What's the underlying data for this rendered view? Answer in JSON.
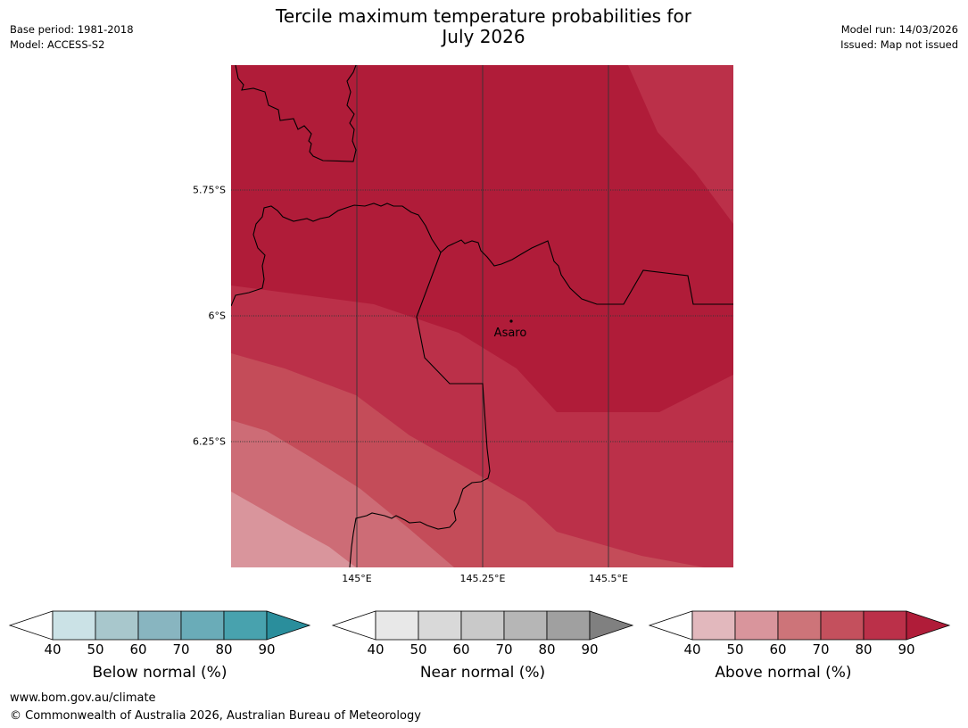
{
  "header": {
    "title_line1": "Tercile maximum temperature probabilities for",
    "title_line2": "July 2026",
    "base_period": "Base period: 1981-2018",
    "model": "Model: ACCESS-S2",
    "model_run": "Model run: 14/03/2026",
    "issued": "Issued: Map not issued"
  },
  "map": {
    "lat_labels": [
      "5.75°S",
      "6°S",
      "6.25°S"
    ],
    "lon_labels": [
      "145°E",
      "145.25°E",
      "145.5°E"
    ],
    "place": "Asaro",
    "colors": {
      "above_90": "#b01c39",
      "above_80": "#bb3049",
      "above_70": "#c44c59",
      "above_60": "#cd6c76",
      "above_50": "#d9959c"
    }
  },
  "legends": [
    {
      "caption": "Below normal (%)",
      "ticks": [
        "40",
        "50",
        "60",
        "70",
        "80",
        "90"
      ],
      "colors": [
        "#cbe2e6",
        "#a8c7cc",
        "#88b5c0",
        "#6aacb8",
        "#48a2ae",
        "#2a8e9c"
      ]
    },
    {
      "caption": "Near normal (%)",
      "ticks": [
        "40",
        "50",
        "60",
        "70",
        "80",
        "90"
      ],
      "colors": [
        "#e8e8e8",
        "#d9d9d9",
        "#c9c9c9",
        "#b6b6b6",
        "#a0a0a0",
        "#808080"
      ]
    },
    {
      "caption": "Above normal (%)",
      "ticks": [
        "40",
        "50",
        "60",
        "70",
        "80",
        "90"
      ],
      "colors": [
        "#e2b8bd",
        "#d9959c",
        "#cd7479",
        "#c4505d",
        "#bb3049",
        "#b01c39"
      ]
    }
  ],
  "footer": {
    "url": "www.bom.gov.au/climate",
    "copyright": "© Commonwealth of Australia 2026, Australian Bureau of Meteorology"
  }
}
